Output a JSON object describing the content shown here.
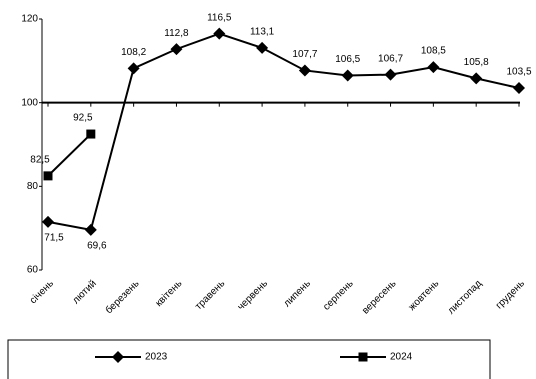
{
  "chart_data": {
    "type": "line",
    "categories": [
      "січень",
      "лютий",
      "березень",
      "квітень",
      "травень",
      "червень",
      "липень",
      "серпень",
      "вересень",
      "жовтень",
      "листопад",
      "грудень"
    ],
    "series": [
      {
        "name": "2023",
        "color": "#000000",
        "marker": "diamond",
        "values": [
          71.5,
          69.6,
          108.2,
          112.8,
          116.5,
          113.1,
          107.7,
          106.5,
          106.7,
          108.5,
          105.8,
          103.5
        ],
        "value_labels": [
          "71,5",
          "69,6",
          "108,2",
          "112,8",
          "116,5",
          "113,1",
          "107,7",
          "106,5",
          "106,7",
          "108,5",
          "105,8",
          "103,5"
        ]
      },
      {
        "name": "2024",
        "color": "#000000",
        "marker": "square",
        "values": [
          82.5,
          92.5,
          null,
          null,
          null,
          null,
          null,
          null,
          null,
          null,
          null,
          null
        ],
        "value_labels": [
          "82,5",
          "92,5",
          null,
          null,
          null,
          null,
          null,
          null,
          null,
          null,
          null,
          null
        ]
      }
    ],
    "ylim": [
      60,
      120
    ],
    "yticks": [
      60,
      80,
      100,
      120
    ],
    "hline": 100,
    "legend": "bottom"
  }
}
